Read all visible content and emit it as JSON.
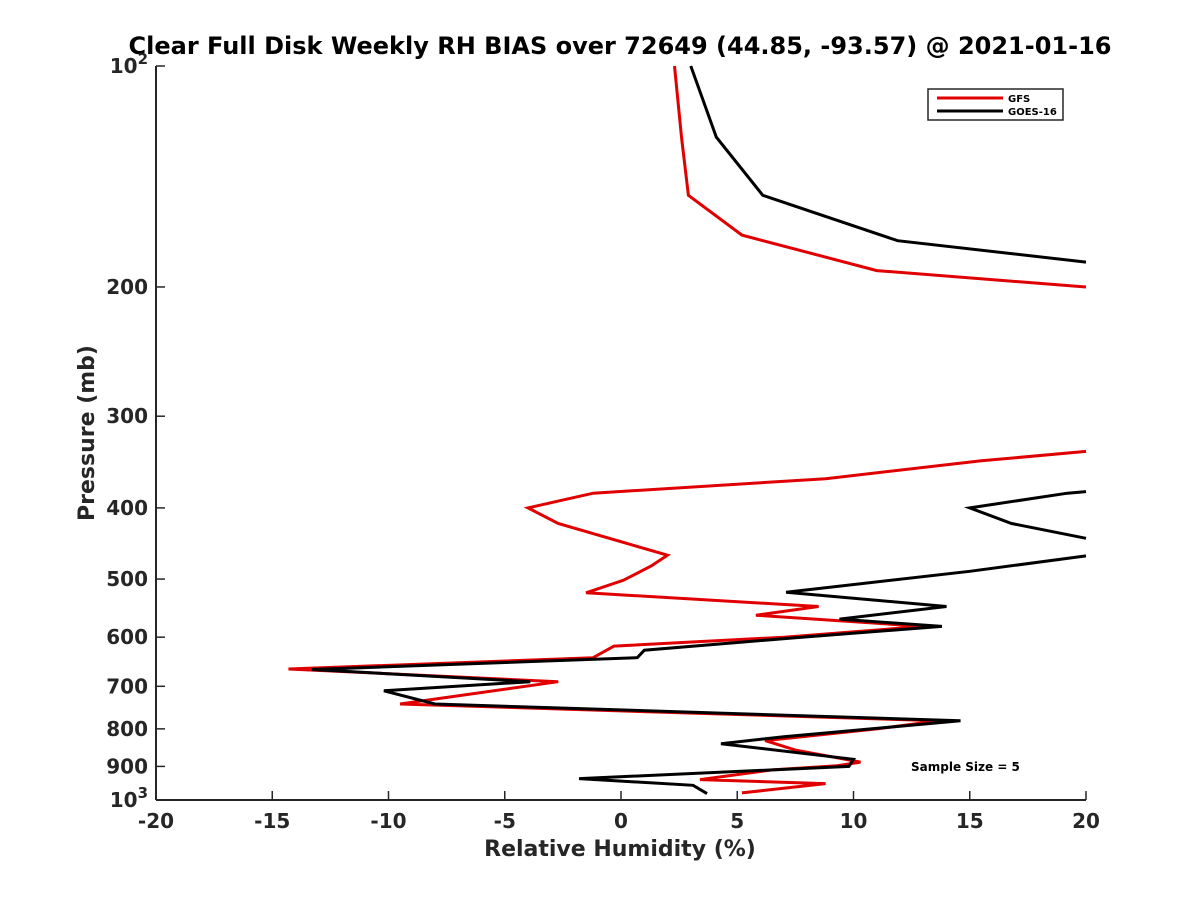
{
  "chart_data": {
    "type": "line",
    "title": "Clear Full Disk Weekly RH BIAS over 72649 (44.85, -93.57) @ 2021-01-16",
    "xlabel": "Relative Humidity (%)",
    "ylabel": "Pressure (mb)",
    "xlim": [
      -20,
      20
    ],
    "ylim": [
      100,
      1000
    ],
    "y_scale": "log",
    "y_reversed": true,
    "x_ticks": [
      -20,
      -15,
      -10,
      -5,
      0,
      5,
      10,
      15,
      20
    ],
    "y_ticks": [
      {
        "value": 100,
        "label": "10",
        "sup": "2"
      },
      {
        "value": 200,
        "label": "200",
        "sup": ""
      },
      {
        "value": 300,
        "label": "300",
        "sup": ""
      },
      {
        "value": 400,
        "label": "400",
        "sup": ""
      },
      {
        "value": 500,
        "label": "500",
        "sup": ""
      },
      {
        "value": 600,
        "label": "600",
        "sup": ""
      },
      {
        "value": 700,
        "label": "700",
        "sup": ""
      },
      {
        "value": 800,
        "label": "800",
        "sup": ""
      },
      {
        "value": 900,
        "label": "900",
        "sup": ""
      },
      {
        "value": 1000,
        "label": "10",
        "sup": "3"
      }
    ],
    "grid": false,
    "legend_position": "top-right",
    "annotation": "Sample Size = 5",
    "series": [
      {
        "name": "GFS",
        "color": "#e00000",
        "points": [
          [
            2.3,
            100
          ],
          [
            2.6,
            125
          ],
          [
            2.9,
            150
          ],
          [
            5.2,
            170
          ],
          [
            11.0,
            190
          ],
          [
            20.0,
            200
          ],
          [
            null,
            null
          ],
          [
            20.0,
            335
          ],
          [
            15.5,
            345
          ],
          [
            8.8,
            365
          ],
          [
            -1.2,
            382
          ],
          [
            -4.0,
            400
          ],
          [
            -2.7,
            420
          ],
          [
            2.0,
            464
          ],
          [
            1.3,
            480
          ],
          [
            0.1,
            502
          ],
          [
            -1.5,
            522
          ],
          [
            8.5,
            545
          ],
          [
            5.8,
            560
          ],
          [
            13.0,
            580
          ],
          [
            7.0,
            600
          ],
          [
            -0.3,
            617
          ],
          [
            -1.2,
            640
          ],
          [
            -14.3,
            663
          ],
          [
            -2.7,
            690
          ],
          [
            -9.5,
            740
          ],
          [
            13.7,
            780
          ],
          [
            11.0,
            800
          ],
          [
            6.2,
            830
          ],
          [
            7.5,
            855
          ],
          [
            10.3,
            888
          ],
          [
            9.3,
            898
          ],
          [
            6.5,
            910
          ],
          [
            3.4,
            938
          ],
          [
            8.8,
            950
          ],
          [
            5.2,
            978
          ]
        ]
      },
      {
        "name": "GOES-16",
        "color": "#000000",
        "points": [
          [
            3.0,
            100
          ],
          [
            4.1,
            125
          ],
          [
            6.1,
            150
          ],
          [
            11.9,
            173
          ],
          [
            20.0,
            185
          ],
          [
            null,
            null
          ],
          [
            20.0,
            380
          ],
          [
            19.2,
            382
          ],
          [
            15.0,
            400
          ],
          [
            16.8,
            420
          ],
          [
            20.0,
            440
          ],
          [
            null,
            null
          ],
          [
            20.0,
            465
          ],
          [
            15.0,
            488
          ],
          [
            7.1,
            521
          ],
          [
            14.0,
            545
          ],
          [
            9.4,
            567
          ],
          [
            13.8,
            580
          ],
          [
            7.5,
            601
          ],
          [
            1.0,
            625
          ],
          [
            0.7,
            640
          ],
          [
            -13.3,
            664
          ],
          [
            -3.9,
            690
          ],
          [
            -10.2,
            710
          ],
          [
            -8.0,
            740
          ],
          [
            14.6,
            780
          ],
          [
            7.0,
            820
          ],
          [
            4.3,
            838
          ],
          [
            10.0,
            880
          ],
          [
            9.8,
            900
          ],
          [
            -1.8,
            935
          ],
          [
            3.1,
            955
          ],
          [
            3.7,
            980
          ]
        ]
      }
    ]
  }
}
